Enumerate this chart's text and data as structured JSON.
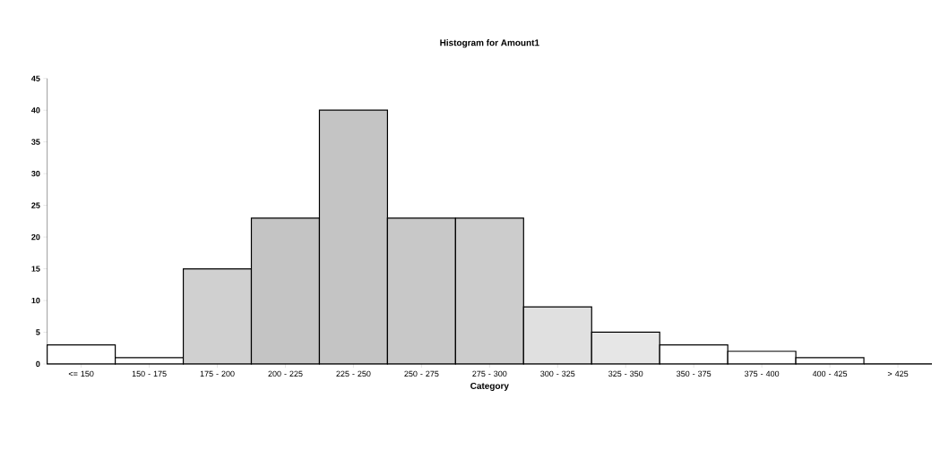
{
  "chart_data": {
    "type": "bar",
    "title": "Histogram for Amount1",
    "xlabel": "Category",
    "categories": [
      "<= 150",
      "150 - 175",
      "175 - 200",
      "200 - 225",
      "225 - 250",
      "250 - 275",
      "275 - 300",
      "300 - 325",
      "325 - 350",
      "350 - 375",
      "375 - 400",
      "400 - 425",
      "> 425"
    ],
    "values": [
      3,
      1,
      15,
      23,
      40,
      23,
      23,
      9,
      5,
      3,
      2,
      1,
      0
    ],
    "colors": [
      "#ffffff",
      "#ffffff",
      "#d0d0d0",
      "#c4c4c4",
      "#c4c4c4",
      "#c8c8c8",
      "#cccccc",
      "#e0e0e0",
      "#e6e6e6",
      "#ffffff",
      "#ffffff",
      "#ffffff",
      "#ffffff"
    ],
    "ylim": [
      0,
      45
    ],
    "yticks": [
      0,
      5,
      10,
      15,
      20,
      25,
      30,
      35,
      40,
      45
    ],
    "grid": false
  }
}
